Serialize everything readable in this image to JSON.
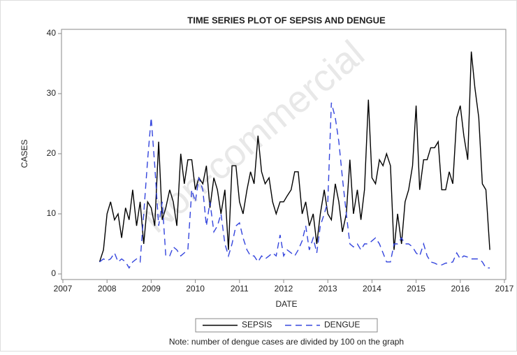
{
  "chart_data": {
    "type": "line",
    "title": "TIME SERIES PLOT OF SEPSIS AND DENGUE",
    "x_label": "DATE",
    "y_label": "CASES",
    "note": "Note: number of dengue cases are divided by 100 on the graph",
    "watermark": "Non-commercial",
    "x": [
      2007.83,
      2007.92,
      2008.0,
      2008.08,
      2008.17,
      2008.25,
      2008.33,
      2008.42,
      2008.5,
      2008.58,
      2008.67,
      2008.75,
      2008.83,
      2008.92,
      2009.0,
      2009.08,
      2009.17,
      2009.25,
      2009.33,
      2009.42,
      2009.5,
      2009.58,
      2009.67,
      2009.75,
      2009.83,
      2009.92,
      2010.0,
      2010.08,
      2010.17,
      2010.25,
      2010.33,
      2010.42,
      2010.5,
      2010.58,
      2010.67,
      2010.75,
      2010.83,
      2010.92,
      2011.0,
      2011.08,
      2011.17,
      2011.25,
      2011.33,
      2011.42,
      2011.5,
      2011.58,
      2011.67,
      2011.75,
      2011.83,
      2011.92,
      2012.0,
      2012.08,
      2012.17,
      2012.25,
      2012.33,
      2012.42,
      2012.5,
      2012.58,
      2012.67,
      2012.75,
      2012.83,
      2012.92,
      2013.0,
      2013.08,
      2013.17,
      2013.25,
      2013.33,
      2013.42,
      2013.5,
      2013.58,
      2013.67,
      2013.75,
      2013.83,
      2013.92,
      2014.0,
      2014.08,
      2014.17,
      2014.25,
      2014.33,
      2014.42,
      2014.5,
      2014.58,
      2014.67,
      2014.75,
      2014.83,
      2014.92,
      2015.0,
      2015.08,
      2015.17,
      2015.25,
      2015.33,
      2015.42,
      2015.5,
      2015.58,
      2015.67,
      2015.75,
      2015.83,
      2015.92,
      2016.0,
      2016.08,
      2016.17,
      2016.25,
      2016.33,
      2016.42,
      2016.5,
      2016.58,
      2016.67
    ],
    "series": [
      {
        "name": "SEPSIS",
        "color": "#000000",
        "dash": "solid",
        "values": [
          2,
          4,
          10,
          12,
          9,
          10,
          6,
          11,
          9,
          14,
          8,
          12,
          5,
          12,
          11,
          8,
          22,
          9,
          11,
          14,
          12,
          8,
          20,
          15,
          19,
          19,
          14,
          16,
          15,
          18,
          11,
          16,
          14,
          10,
          14,
          4,
          18,
          18,
          12,
          10,
          14,
          17,
          15,
          23,
          17,
          15,
          16,
          12,
          10,
          12,
          12,
          13,
          14,
          17,
          17,
          10,
          12,
          8,
          10,
          5,
          10,
          14,
          10,
          9,
          15,
          12,
          7,
          10,
          19,
          10,
          14,
          9,
          14,
          29,
          16,
          15,
          19,
          18,
          20,
          18,
          4,
          10,
          5,
          12,
          14,
          18,
          28,
          14,
          19,
          19,
          21,
          21,
          22,
          14,
          14,
          17,
          15,
          26,
          28,
          23,
          19,
          37,
          31,
          26,
          15,
          14,
          4
        ]
      },
      {
        "name": "DENGUE",
        "color": "#3344dd",
        "dash": "dashed",
        "values": [
          2,
          2.5,
          2.2,
          2.5,
          3.5,
          2,
          2.5,
          2,
          1,
          2,
          2.5,
          2,
          10,
          19,
          26,
          18,
          8,
          12,
          3,
          3,
          4.5,
          4,
          3,
          3.5,
          4,
          14,
          12,
          16,
          14,
          8,
          12,
          7,
          8,
          10,
          5,
          3,
          5,
          8,
          8.5,
          6,
          4,
          3,
          3,
          2,
          3,
          2.5,
          3,
          3.5,
          3,
          6.5,
          3,
          4,
          3.5,
          3,
          4,
          5.5,
          8,
          4,
          6,
          3.5,
          8,
          10,
          12,
          28.5,
          26,
          22,
          16,
          10,
          5,
          4.5,
          5,
          4,
          5,
          5,
          5.5,
          6,
          5,
          3.5,
          2,
          2,
          5,
          5,
          6,
          5,
          5,
          4.5,
          3.5,
          3,
          5,
          3,
          2,
          1.8,
          1.5,
          1.5,
          1.8,
          1.8,
          2,
          3.5,
          2.5,
          3,
          2.8,
          2.5,
          2.5,
          2.5,
          2,
          1,
          1
        ]
      }
    ],
    "xlim": [
      2007,
      2017
    ],
    "xticks": [
      2007,
      2008,
      2009,
      2010,
      2011,
      2012,
      2013,
      2014,
      2015,
      2016,
      2017
    ],
    "ylim": [
      0,
      40
    ],
    "yticks": [
      0,
      10,
      20,
      30,
      40
    ],
    "grid": false,
    "legend": "bottom"
  }
}
